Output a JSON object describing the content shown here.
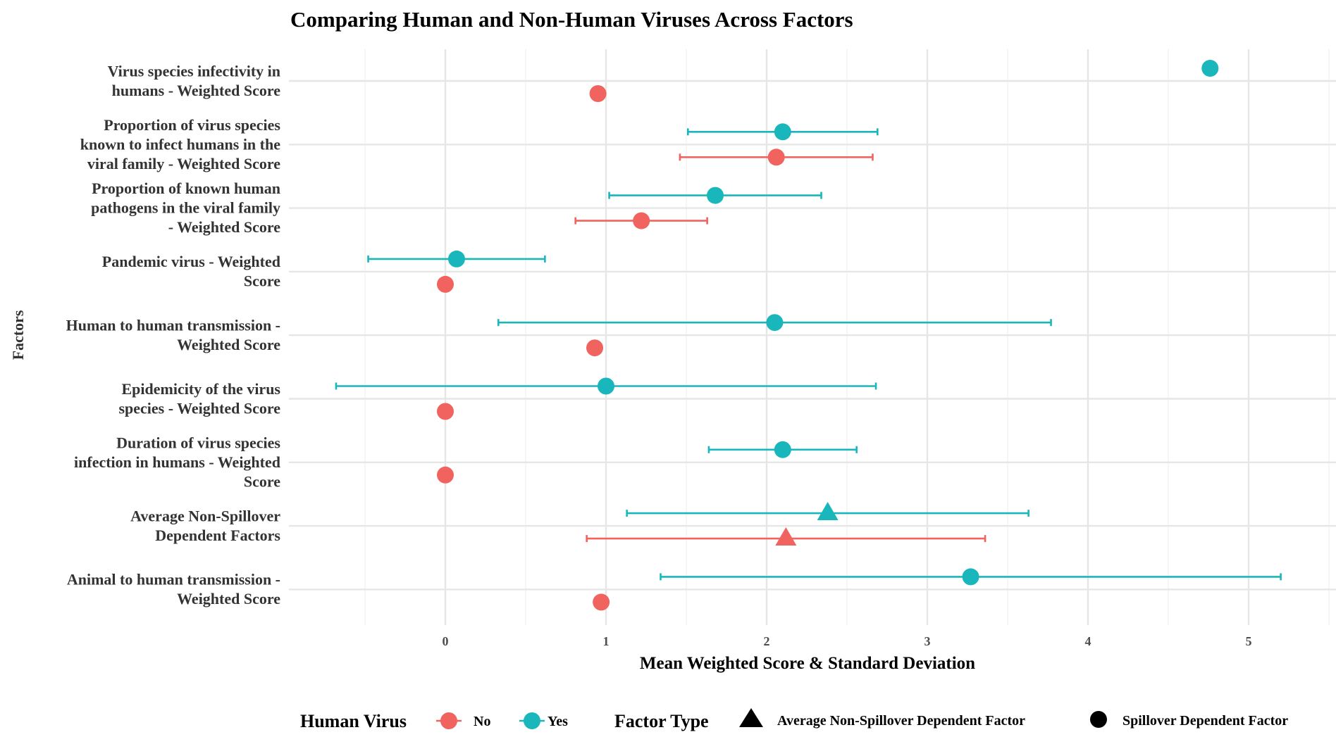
{
  "chart_data": {
    "type": "scatter",
    "title": "Comparing Human and Non-Human Viruses Across Factors",
    "xlabel": "Mean Weighted Score & Standard Deviation",
    "ylabel": "Factors",
    "xlim": [
      -0.9,
      5.5
    ],
    "x_ticks": [
      0,
      1,
      2,
      3,
      4,
      5
    ],
    "grid": true,
    "categories": [
      "Virus species infectivity in humans - Weighted Score",
      "Proportion of virus species known to infect humans in the viral family - Weighted Score",
      "Proportion of known human pathogens in the viral family - Weighted Score",
      "Pandemic virus - Weighted Score",
      "Human to human transmission - Weighted Score",
      "Epidemicity of the virus species - Weighted Score",
      "Duration of virus species infection in humans - Weighted Score",
      "Average Non-Spillover Dependent Factors",
      "Animal to human transmission - Weighted Score"
    ],
    "category_lines": [
      [
        "Virus species infectivity in",
        "humans - Weighted Score"
      ],
      [
        "Proportion of virus species",
        "known to infect humans in the",
        "viral family - Weighted Score"
      ],
      [
        "Proportion of known human",
        "pathogens in the viral family",
        "- Weighted Score"
      ],
      [
        "Pandemic virus - Weighted",
        "Score"
      ],
      [
        "Human to human transmission -",
        "Weighted Score"
      ],
      [
        "Epidemicity of the virus",
        "species - Weighted Score"
      ],
      [
        "Duration of virus species",
        "infection in humans - Weighted",
        "Score"
      ],
      [
        "Average Non-Spillover",
        "Dependent Factors"
      ],
      [
        "Animal to human transmission -",
        "Weighted Score"
      ]
    ],
    "series": [
      {
        "name": "Yes",
        "color": "#19B7BB",
        "points": [
          {
            "category": 0,
            "mean": 4.76,
            "sd": null,
            "shape": "circle"
          },
          {
            "category": 1,
            "mean": 2.1,
            "sd": 0.59,
            "shape": "circle"
          },
          {
            "category": 2,
            "mean": 1.68,
            "sd": 0.66,
            "shape": "circle"
          },
          {
            "category": 3,
            "mean": 0.07,
            "sd": 0.55,
            "shape": "circle"
          },
          {
            "category": 4,
            "mean": 2.05,
            "sd": 1.72,
            "shape": "circle"
          },
          {
            "category": 5,
            "mean": 1.0,
            "sd": 1.68,
            "shape": "circle"
          },
          {
            "category": 6,
            "mean": 2.1,
            "sd": 0.46,
            "shape": "circle"
          },
          {
            "category": 7,
            "mean": 2.38,
            "sd": 1.25,
            "shape": "triangle"
          },
          {
            "category": 8,
            "mean": 3.27,
            "sd": 1.93,
            "shape": "circle"
          }
        ]
      },
      {
        "name": "No",
        "color": "#F0635F",
        "points": [
          {
            "category": 0,
            "mean": 0.95,
            "sd": null,
            "shape": "circle"
          },
          {
            "category": 1,
            "mean": 2.06,
            "sd": 0.6,
            "shape": "circle"
          },
          {
            "category": 2,
            "mean": 1.22,
            "sd": 0.41,
            "shape": "circle"
          },
          {
            "category": 3,
            "mean": 0.0,
            "sd": null,
            "shape": "circle"
          },
          {
            "category": 4,
            "mean": 0.93,
            "sd": null,
            "shape": "circle"
          },
          {
            "category": 5,
            "mean": 0.0,
            "sd": null,
            "shape": "circle"
          },
          {
            "category": 6,
            "mean": 0.0,
            "sd": null,
            "shape": "circle"
          },
          {
            "category": 7,
            "mean": 2.12,
            "sd": 1.24,
            "shape": "triangle"
          },
          {
            "category": 8,
            "mean": 0.97,
            "sd": null,
            "shape": "circle"
          }
        ]
      }
    ],
    "legend": {
      "placement": "bottom",
      "color_title": "Human Virus",
      "color_items": [
        {
          "label": "No",
          "color": "#F0635F"
        },
        {
          "label": "Yes",
          "color": "#19B7BB"
        }
      ],
      "shape_title": "Factor Type",
      "shape_items": [
        {
          "label": "Average Non-Spillover Dependent Factor",
          "shape": "triangle"
        },
        {
          "label": "Spillover Dependent Factor",
          "shape": "circle"
        }
      ]
    }
  }
}
